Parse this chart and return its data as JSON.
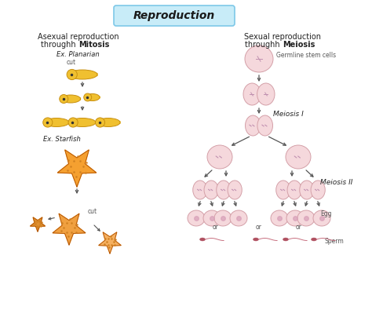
{
  "title": "Reproduction",
  "title_bg": "#c8ecf8",
  "title_border": "#7ec8e8",
  "background": "#ffffff",
  "left_heading1": "Asexual reproduction",
  "left_heading2": "throughh ",
  "left_heading_bold": "Mitosis",
  "right_heading1": "Sexual reproduction",
  "right_heading2": "throughh ",
  "right_heading_bold": "Meiosis",
  "planarian_label": "Ex. Planarian",
  "planarian_cut": "cut",
  "starfish_label": "Ex. Starfish",
  "starfish_cut": "cut",
  "germline_label": "Germline stem cells",
  "meiosis1_label": "Meiosis I",
  "meiosis2_label": "Meiosis II",
  "egg_label": "Egg",
  "sperm_label": "Sperm",
  "cell_color": "#f5d8dc",
  "cell_edge": "#d4a0a8",
  "cell_inner": "#c090b0",
  "planarian_color": "#f0c030",
  "planarian_edge": "#c89010",
  "starfish_color_main": "#f5a030",
  "starfish_color_cut": "#f0a040",
  "starfish_color_small": "#f5b060",
  "starfish_edge": "#b05000",
  "arrow_color": "#555555",
  "text_color": "#222222",
  "label_color": "#555555",
  "sperm_color": "#c87080",
  "sperm_head": "#b05060"
}
